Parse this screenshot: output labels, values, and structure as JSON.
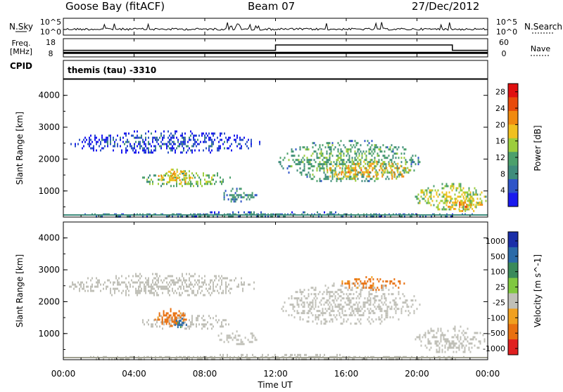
{
  "header": {
    "station": "Goose Bay (fitACF)",
    "beam": "Beam 07",
    "date": "27/Dec/2012"
  },
  "noise_panel": {
    "left_label": "N.Sky",
    "left_ticks": [
      "10^5",
      "10^0"
    ],
    "right_ticks": [
      "10^5",
      "10^0"
    ],
    "right_label": "N.Search"
  },
  "freq_panel": {
    "label_line1": "Freq.",
    "label_line2": "[MHz]",
    "left_ticks": [
      "18",
      "8"
    ],
    "right_ticks": [
      "60",
      "0"
    ],
    "right_label": "Nave",
    "freq_mhz_approx": 10,
    "nave_steps": [
      {
        "start_hour": 0,
        "end_hour": 12,
        "nave": 21
      },
      {
        "start_hour": 12,
        "end_hour": 22,
        "nave": 40
      },
      {
        "start_hour": 22,
        "end_hour": 24,
        "nave": 21
      }
    ]
  },
  "cpid": {
    "label": "CPID",
    "text": "themis (tau) -3310"
  },
  "time_axis": {
    "ticks": [
      "00:00",
      "04:00",
      "08:00",
      "12:00",
      "16:00",
      "20:00",
      "00:00"
    ],
    "label": "Time UT"
  },
  "chart_data": [
    {
      "type": "heatmap",
      "name": "power",
      "ylabel": "Slant Range [km]",
      "y_ticks": [
        "1000",
        "2000",
        "3000",
        "4000"
      ],
      "ylim": [
        180,
        4500
      ],
      "xlim_hours": [
        0,
        24
      ],
      "colorbar": {
        "label": "Power [dB]",
        "ticks": [
          "4",
          "8",
          "12",
          "16",
          "20",
          "24",
          "28"
        ],
        "range": [
          0,
          30
        ]
      },
      "echo_regions": [
        {
          "t0": 0.0,
          "t1": 11.3,
          "r0": 2200,
          "r1": 2900,
          "level": 5
        },
        {
          "t0": 4.3,
          "t1": 9.6,
          "r0": 1150,
          "r1": 1650,
          "level": 14
        },
        {
          "t0": 5.2,
          "t1": 7.4,
          "r0": 1250,
          "r1": 1700,
          "level": 20
        },
        {
          "t0": 8.5,
          "t1": 11.0,
          "r0": 700,
          "r1": 1100,
          "level": 10
        },
        {
          "t0": 12.0,
          "t1": 20.3,
          "r0": 1300,
          "r1": 2600,
          "level": 12
        },
        {
          "t0": 14.5,
          "t1": 19.8,
          "r0": 1350,
          "r1": 1950,
          "level": 20
        },
        {
          "t0": 19.8,
          "t1": 24.0,
          "r0": 400,
          "r1": 1250,
          "level": 16
        },
        {
          "t0": 21.5,
          "t1": 24.0,
          "r0": 400,
          "r1": 800,
          "level": 22
        },
        {
          "t0": 0.0,
          "t1": 24.0,
          "r0": 180,
          "r1": 360,
          "level": 8
        }
      ]
    },
    {
      "type": "heatmap",
      "name": "velocity",
      "ylabel": "Slant Range [km]",
      "y_ticks": [
        "1000",
        "2000",
        "3000",
        "4000"
      ],
      "ylim": [
        180,
        4500
      ],
      "xlim_hours": [
        0,
        24
      ],
      "colorbar": {
        "label": "Velocity [m s^-1]",
        "ticks": [
          "1000",
          "500",
          "100",
          "25",
          "-25",
          "-100",
          "-500",
          "-1000"
        ],
        "range": [
          -1200,
          1200
        ]
      },
      "echo_regions": [
        {
          "t0": 0.0,
          "t1": 11.3,
          "r0": 2200,
          "r1": 2900,
          "level": 0
        },
        {
          "t0": 4.3,
          "t1": 9.6,
          "r0": 1150,
          "r1": 1650,
          "level": 0
        },
        {
          "t0": 5.0,
          "t1": 7.2,
          "r0": 1250,
          "r1": 1800,
          "level": -150
        },
        {
          "t0": 6.2,
          "t1": 7.0,
          "r0": 1200,
          "r1": 1500,
          "level": 150
        },
        {
          "t0": 8.5,
          "t1": 11.0,
          "r0": 700,
          "r1": 1100,
          "level": 0
        },
        {
          "t0": 12.0,
          "t1": 20.3,
          "r0": 1300,
          "r1": 2600,
          "level": 0
        },
        {
          "t0": 15.5,
          "t1": 19.5,
          "r0": 2400,
          "r1": 2800,
          "level": -150
        },
        {
          "t0": 19.8,
          "t1": 24.0,
          "r0": 400,
          "r1": 1250,
          "level": 0
        },
        {
          "t0": 0.0,
          "t1": 24.0,
          "r0": 180,
          "r1": 360,
          "level": 0
        }
      ]
    }
  ]
}
